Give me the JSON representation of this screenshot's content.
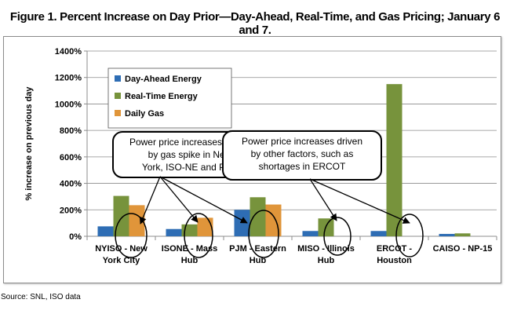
{
  "figure": {
    "title": "Figure 1. Percent Increase on Day Prior—Day-Ahead, Real-Time, and Gas Pricing; January 6 and 7.",
    "source": "Source: SNL, ISO data"
  },
  "colors": {
    "day_ahead": "#2e6db4",
    "real_time": "#77933c",
    "daily_gas": "#e0953a",
    "gridline": "#8c8c8c",
    "axis": "#8c8c8c",
    "annotation_stroke": "#000000"
  },
  "chart_data": {
    "type": "bar",
    "ylabel": "% increase on previous day",
    "ylim": [
      0,
      1400
    ],
    "yticks": [
      0,
      200,
      400,
      600,
      800,
      1000,
      1200,
      1400
    ],
    "ytick_labels": [
      "0%",
      "200%",
      "400%",
      "600%",
      "800%",
      "1000%",
      "1200%",
      "1400%"
    ],
    "grid": true,
    "categories": [
      [
        "NYISO - New",
        "York City"
      ],
      [
        "ISONE - Mass",
        "Hub"
      ],
      [
        "PJM - Eastern",
        "Hub"
      ],
      [
        "MISO - Illinois",
        "Hub"
      ],
      [
        "ERCOT -",
        "Houston"
      ],
      [
        "CAISO - NP-15"
      ]
    ],
    "series": [
      {
        "name": "Day-Ahead Energy",
        "values": [
          75,
          55,
          200,
          40,
          40,
          18
        ]
      },
      {
        "name": "Real-Time Energy",
        "values": [
          305,
          90,
          295,
          135,
          1150,
          22
        ]
      },
      {
        "name": "Daily Gas",
        "values": [
          235,
          140,
          240,
          0,
          0,
          0
        ]
      }
    ],
    "legend_placement": "top-left",
    "annotations": [
      {
        "lines": [
          "Power price increases driven",
          "by gas spike in New",
          "York, ISO-NE and PJM"
        ],
        "points_to": [
          "NYISO - New York City",
          "ISONE - Mass Hub",
          "PJM - Eastern Hub"
        ]
      },
      {
        "lines": [
          "Power price increases driven",
          "by other factors, such as",
          "shortages in ERCOT"
        ],
        "points_to": [
          "MISO - Illinois Hub",
          "ERCOT - Houston"
        ]
      }
    ]
  }
}
